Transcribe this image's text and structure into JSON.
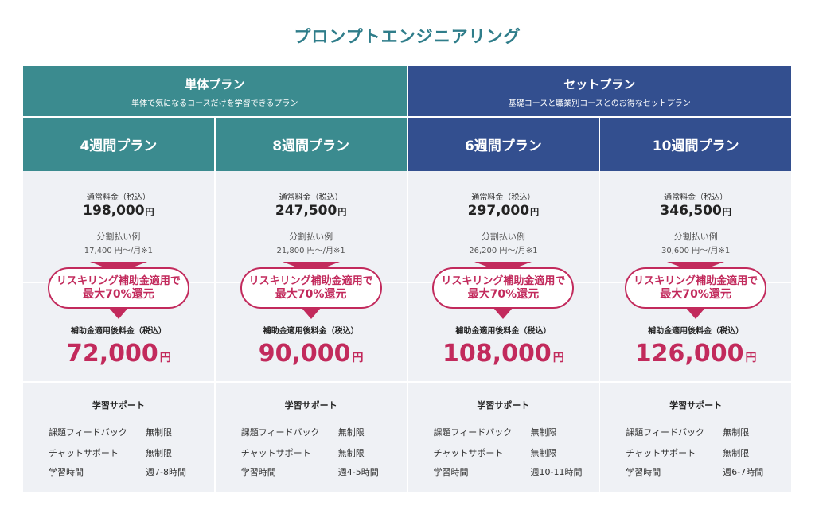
{
  "title": "プロンプトエンジニアリング",
  "colors": {
    "teal": "#3b8b8f",
    "navy": "#334f8f",
    "accent": "#c22a5c",
    "cell_bg": "#eff1f5",
    "title": "#2f7d8a"
  },
  "groups": [
    {
      "name": "単体プラン",
      "description": "単体で気になるコースだけを学習できるプラン"
    },
    {
      "name": "セットプラン",
      "description": "基礎コースと職業別コースとのお得なセットプラン"
    }
  ],
  "labels": {
    "regular_fee": "通常料金（税込）",
    "installment": "分割払い例",
    "after_fee": "補助金適用後料金（税込）",
    "yen": "円",
    "badge_line1": "リスキリング補助金適用で",
    "badge_line2": "最大70%還元",
    "support_title": "学習サポート",
    "support_feedback": "課題フィードバック",
    "support_chat": "チャットサポート",
    "support_hours": "学習時間"
  },
  "plans": [
    {
      "name": "4週間プラン",
      "regular_price": "198,000",
      "installment": "17,400 円〜/月※1",
      "after_price": "72,000",
      "feedback": "無制限",
      "chat": "無制限",
      "hours": "週7-8時間"
    },
    {
      "name": "8週間プラン",
      "regular_price": "247,500",
      "installment": "21,800 円〜/月※1",
      "after_price": "90,000",
      "feedback": "無制限",
      "chat": "無制限",
      "hours": "週4-5時間"
    },
    {
      "name": "6週間プラン",
      "regular_price": "297,000",
      "installment": "26,200 円〜/月※1",
      "after_price": "108,000",
      "feedback": "無制限",
      "chat": "無制限",
      "hours": "週10-11時間"
    },
    {
      "name": "10週間プラン",
      "regular_price": "346,500",
      "installment": "30,600 円〜/月※1",
      "after_price": "126,000",
      "feedback": "無制限",
      "chat": "無制限",
      "hours": "週6-7時間"
    }
  ]
}
